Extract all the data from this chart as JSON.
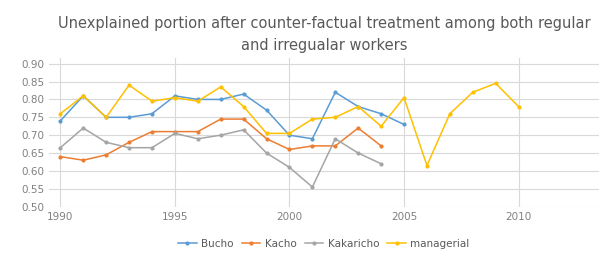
{
  "title_line1": "Unexplained portion after counter-factual treatment among both regular",
  "title_line2": "and irregualar workers",
  "title_color": "#595959",
  "title_fontsize": 10.5,
  "ylim": [
    0.5,
    0.915
  ],
  "yticks": [
    0.5,
    0.55,
    0.6,
    0.65,
    0.7,
    0.75,
    0.8,
    0.85,
    0.9
  ],
  "xticks": [
    1990,
    1995,
    2000,
    2005,
    2010
  ],
  "xlim": [
    1989.5,
    2013.5
  ],
  "series": {
    "Bucho": {
      "color": "#5b9bd5",
      "years": [
        1990,
        1991,
        1992,
        1993,
        1994,
        1995,
        1996,
        1997,
        1998,
        1999,
        2000,
        2001,
        2002,
        2003,
        2004,
        2005
      ],
      "values": [
        0.74,
        0.81,
        0.75,
        0.75,
        0.76,
        0.81,
        0.8,
        0.8,
        0.815,
        0.77,
        0.7,
        0.69,
        0.82,
        0.78,
        0.76,
        0.73
      ]
    },
    "Kacho": {
      "color": "#ed7d31",
      "years": [
        1990,
        1991,
        1992,
        1993,
        1994,
        1995,
        1996,
        1997,
        1998,
        1999,
        2000,
        2001,
        2002,
        2003,
        2004
      ],
      "values": [
        0.64,
        0.63,
        0.645,
        0.68,
        0.71,
        0.71,
        0.71,
        0.745,
        0.745,
        0.69,
        0.66,
        0.67,
        0.67,
        0.72,
        0.67
      ]
    },
    "Kakaricho": {
      "color": "#a5a5a5",
      "years": [
        1990,
        1991,
        1992,
        1993,
        1994,
        1995,
        1996,
        1997,
        1998,
        1999,
        2000,
        2001,
        2002,
        2003,
        2004
      ],
      "values": [
        0.665,
        0.72,
        0.68,
        0.665,
        0.665,
        0.705,
        0.69,
        0.7,
        0.715,
        0.65,
        0.61,
        0.555,
        0.69,
        0.65,
        0.62
      ]
    },
    "managerial": {
      "color": "#ffc000",
      "years": [
        1990,
        1991,
        1992,
        1993,
        1994,
        1995,
        1996,
        1997,
        1998,
        1999,
        2000,
        2001,
        2002,
        2003,
        2004,
        2005,
        2006,
        2007,
        2008,
        2009,
        2010,
        2011,
        2012
      ],
      "values": [
        0.76,
        0.81,
        0.75,
        0.84,
        0.795,
        0.805,
        0.795,
        0.835,
        0.78,
        0.705,
        0.705,
        0.745,
        0.75,
        0.78,
        0.725,
        0.805,
        0.615,
        0.76,
        0.82,
        0.845,
        0.78,
        null,
        null
      ]
    }
  },
  "legend_labels": [
    "Bucho",
    "Kacho",
    "Kakaricho",
    "managerial"
  ],
  "grid_color": "#d9d9d9",
  "background_color": "#ffffff",
  "tick_fontsize": 7.5,
  "legend_fontsize": 7.5,
  "tick_color": "#808080"
}
